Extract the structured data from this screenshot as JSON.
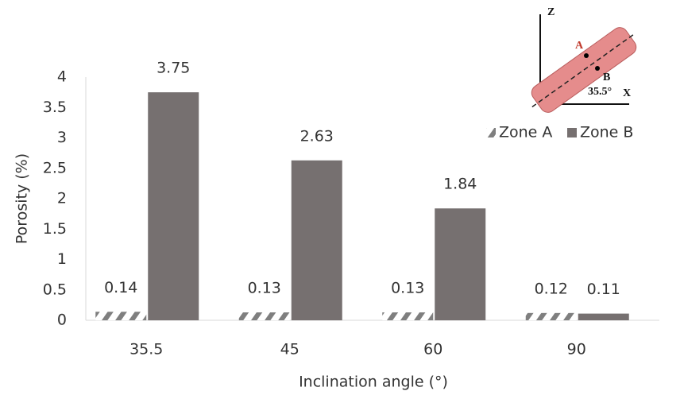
{
  "chart_data": {
    "type": "bar",
    "x_label": "Inclination angle (°)",
    "y_label": "Porosity (%)",
    "categories": [
      "35.5",
      "45",
      "60",
      "90"
    ],
    "series": [
      {
        "name": "Zone A",
        "color": "#7f7f7f",
        "hatch": true,
        "values": [
          0.14,
          0.13,
          0.13,
          0.12
        ]
      },
      {
        "name": "Zone B",
        "color": "#767070",
        "hatch": false,
        "values": [
          3.75,
          2.63,
          1.84,
          0.11
        ]
      }
    ],
    "ylim": [
      0,
      4
    ],
    "yticks": [
      0,
      0.5,
      1,
      1.5,
      2,
      2.5,
      3,
      3.5,
      4
    ],
    "grid": false,
    "legend": "upper right",
    "inset": {
      "z_label": "Z",
      "x_label": "X",
      "point_a": "A",
      "point_b": "B",
      "angle": "35.5°"
    }
  }
}
